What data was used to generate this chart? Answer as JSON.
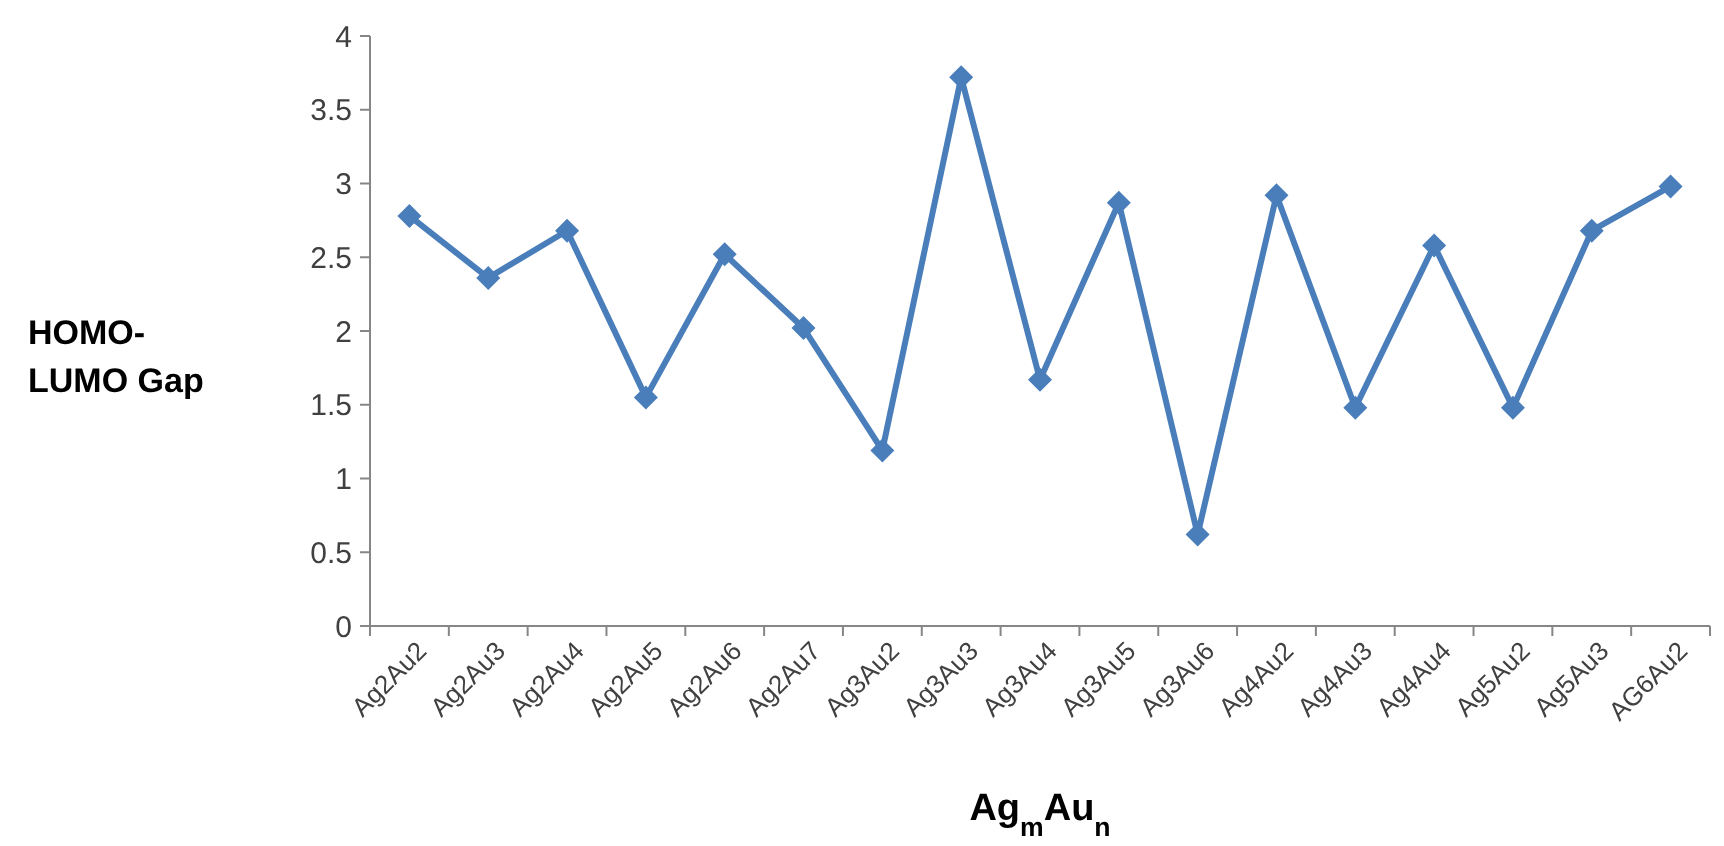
{
  "chart_data": {
    "type": "line",
    "xlabel": "Ag$_{m}$Au$_{n}$",
    "ylabel": "HOMO-LUMO Gap",
    "categories": [
      "Ag2Au2",
      "Ag2Au3",
      "Ag2Au4",
      "Ag2Au5",
      "Ag2Au6",
      "Ag2Au7",
      "Ag3Au2",
      "Ag3Au3",
      "Ag3Au4",
      "Ag3Au5",
      "Ag3Au6",
      "Ag4Au2",
      "Ag4Au3",
      "Ag4Au4",
      "Ag5Au2",
      "Ag5Au3",
      "AG6Au2"
    ],
    "series": [
      {
        "color": "#4a7ebb",
        "values": [
          2.78,
          2.36,
          2.68,
          1.55,
          2.52,
          2.02,
          1.19,
          3.72,
          1.67,
          2.87,
          0.62,
          2.92,
          1.48,
          2.58,
          1.48,
          2.68,
          2.98
        ]
      }
    ],
    "ylim": [
      0,
      4
    ],
    "yticks": [
      0,
      0.5,
      1,
      1.5,
      2,
      2.5,
      3,
      3.5,
      4
    ],
    "grid": false,
    "marker": "diamond",
    "line_style": "solid"
  }
}
